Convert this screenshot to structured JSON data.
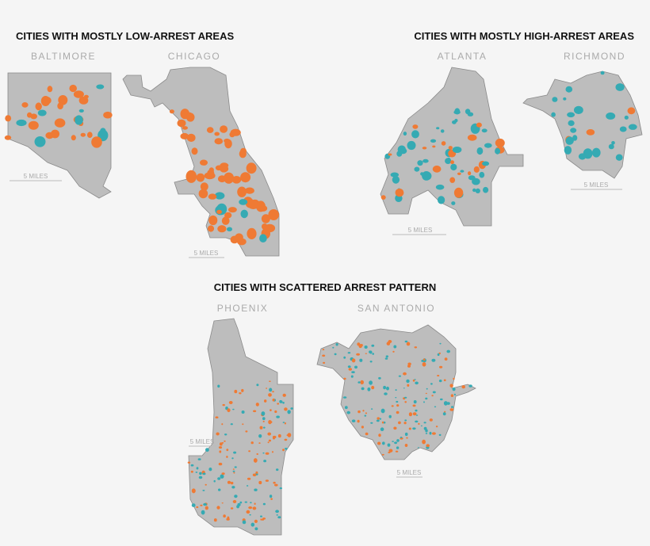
{
  "sections": [
    {
      "title": "CITIES WITH MOSTLY LOW-ARREST AREAS",
      "cities": [
        {
          "name": "BALTIMORE",
          "scale": "5 MILES"
        },
        {
          "name": "CHICAGO",
          "scale": "5 MILES"
        }
      ]
    },
    {
      "title": "CITIES WITH MOSTLY HIGH-ARREST AREAS",
      "cities": [
        {
          "name": "ATLANTA",
          "scale": "5 MILES"
        },
        {
          "name": "RICHMOND",
          "scale": "5 MILES"
        }
      ]
    },
    {
      "title": "CITIES WITH SCATTERED ARREST PATTERN",
      "cities": [
        {
          "name": "PHOENIX",
          "scale": "5 MILES"
        },
        {
          "name": "SAN ANTONIO",
          "scale": "5 MILES"
        }
      ]
    }
  ]
}
